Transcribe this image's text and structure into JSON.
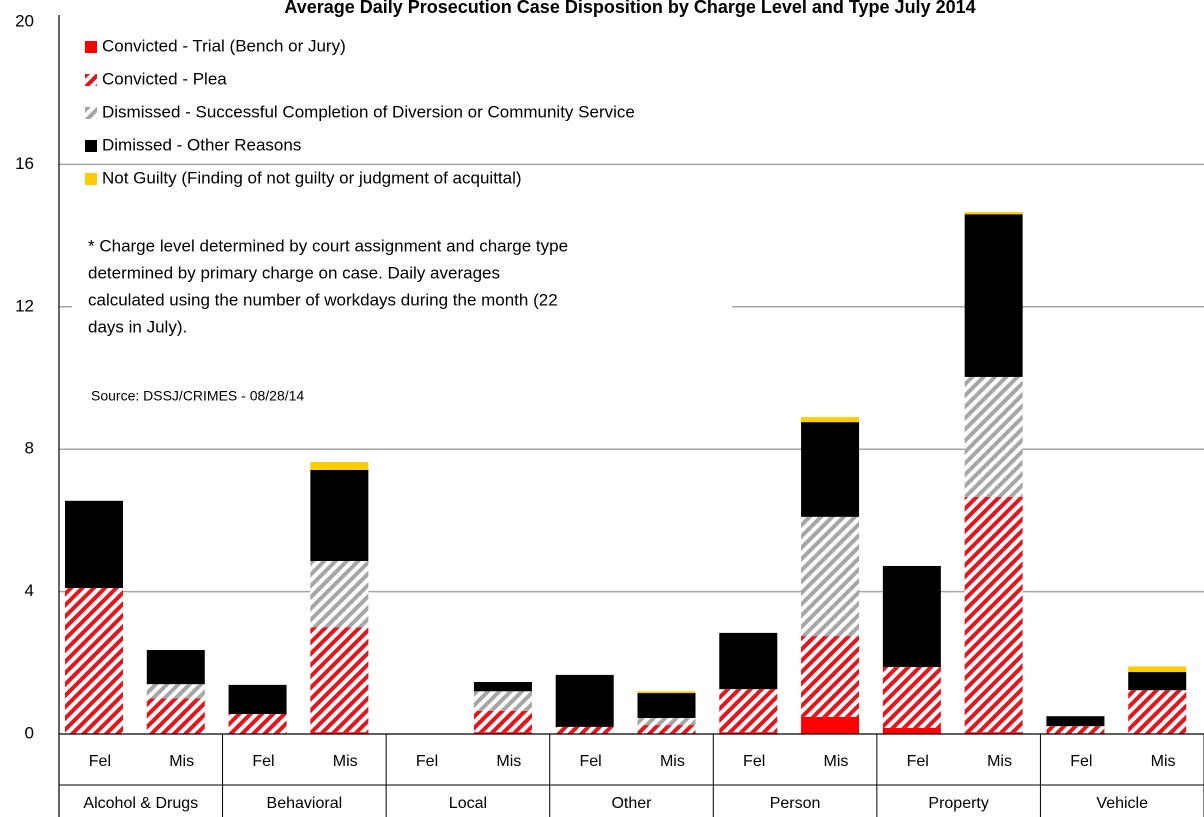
{
  "chart_data": {
    "type": "stacked_bar",
    "title": "Average Daily Prosecution Case Disposition by Charge Level and Type July 2014",
    "categories": [
      "Fel",
      "Mis",
      "Fel",
      "Mis",
      "Fel",
      "Mis",
      "Fel",
      "Mis",
      "Fel",
      "Mis",
      "Fel",
      "Mis",
      "Fel",
      "Mis"
    ],
    "groups": [
      "Alcohol & Drugs",
      "Behavioral",
      "Local",
      "Other",
      "Person",
      "Property",
      "Vehicle"
    ],
    "series": [
      {
        "name": "Convicted - Trial (Bench or Jury)",
        "color": "#ff0000",
        "pattern": "solid",
        "values": [
          0,
          0,
          0,
          0.05,
          0,
          0.05,
          0,
          0,
          0.05,
          0.48,
          0.17,
          0.05,
          0,
          0
        ]
      },
      {
        "name": "Convicted - Plea",
        "color": "#e8141c",
        "pattern": "stripes",
        "values": [
          4.1,
          1.0,
          0.56,
          2.95,
          0,
          0.6,
          0.2,
          0.25,
          1.21,
          2.27,
          1.71,
          6.61,
          0.22,
          1.23
        ]
      },
      {
        "name": "Dismissed - Successful Completion of Diversion or Community Service",
        "color": "#a6a6a6",
        "pattern": "stripes",
        "values": [
          0,
          0.4,
          0,
          1.86,
          0,
          0.55,
          0,
          0.2,
          0,
          3.35,
          0,
          3.37,
          0,
          0
        ]
      },
      {
        "name": "Dimissed - Other Reasons",
        "color": "#000000",
        "pattern": "solid",
        "values": [
          2.45,
          0.96,
          0.82,
          2.56,
          0,
          0.26,
          1.46,
          0.7,
          1.58,
          2.66,
          2.84,
          4.57,
          0.28,
          0.51
        ]
      },
      {
        "name": "Not Guilty (Finding of not guilty or judgment of acquittal)",
        "color": "#ffcc00",
        "pattern": "solid",
        "values": [
          0,
          0,
          0,
          0.22,
          0,
          0,
          0,
          0.05,
          0,
          0.14,
          0,
          0.06,
          0,
          0.16
        ]
      }
    ],
    "ylim": [
      0,
      20
    ],
    "yticks": [
      0,
      4,
      8,
      12,
      16,
      20
    ],
    "grid": true,
    "note": [
      "* Charge level determined by court assignment and charge type",
      "determined by primary charge on case.  Daily averages",
      "calculated using the number of workdays during the month (22",
      "days in July)."
    ],
    "source": "Source: DSSJ/CRIMES - 08/28/14"
  }
}
